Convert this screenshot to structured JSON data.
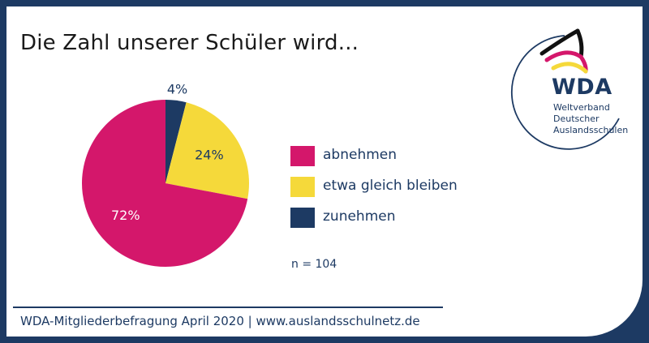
{
  "title": "Die Zahl unserer Schüler wird...",
  "chart_data": {
    "type": "pie",
    "title": "Die Zahl unserer Schüler wird...",
    "start_angle_deg": 0,
    "direction": "clockwise",
    "slices": [
      {
        "label": "zunehmen",
        "value": 4,
        "display": "4%",
        "color": "#1d3a63",
        "label_color": "#1d3a63"
      },
      {
        "label": "etwa gleich bleiben",
        "value": 24,
        "display": "24%",
        "color": "#f5d93a",
        "label_color": "#1d3a63"
      },
      {
        "label": "abnehmen",
        "value": 72,
        "display": "72%",
        "color": "#d4176b",
        "label_color": "#ffffff"
      }
    ],
    "legend_order": [
      "abnehmen",
      "etwa gleich bleiben",
      "zunehmen"
    ],
    "legend_placement": "right",
    "note": "n = 104"
  },
  "legend": [
    {
      "label": "abnehmen",
      "color": "#d4176b"
    },
    {
      "label": "etwa gleich bleiben",
      "color": "#f5d93a"
    },
    {
      "label": "zunehmen",
      "color": "#1d3a63"
    }
  ],
  "note": "n = 104",
  "logo": {
    "name": "WDA",
    "subtitle_lines": [
      "Weltverband",
      "Deutscher",
      "Auslandsschulen"
    ],
    "colors": {
      "black": "#111111",
      "red": "#d4176b",
      "gold": "#f5d93a",
      "navy": "#1d3a63"
    }
  },
  "footer": "WDA-Mitgliederbefragung April 2020 | www.auslandsschulnetz.de"
}
